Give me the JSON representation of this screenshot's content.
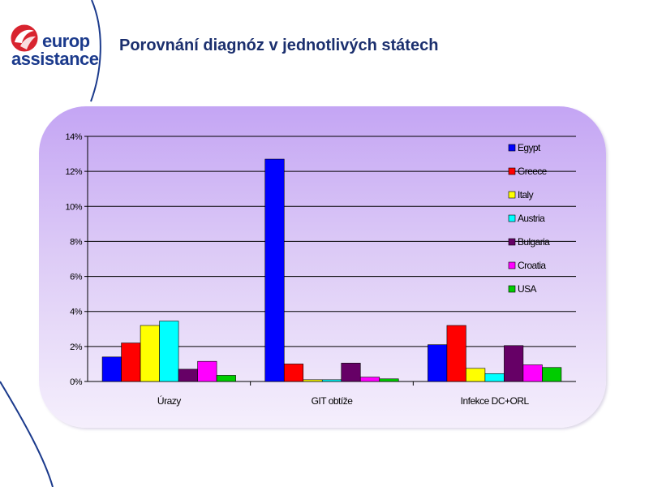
{
  "page": {
    "title": "Porovnání diagnóz v jednotlivých státech"
  },
  "logo": {
    "line1": "europ",
    "line2": "assistance",
    "colors": {
      "text": "#1b3a8c",
      "mark_red": "#d8242f",
      "mark_blue": "#1b3a8c"
    }
  },
  "chart_data": {
    "type": "bar",
    "title": "",
    "xlabel": "",
    "ylabel": "",
    "categories": [
      "Úrazy",
      "GIT obtíže",
      "Infekce DC+ORL"
    ],
    "ylim": [
      0,
      14
    ],
    "yticks": [
      "0%",
      "2%",
      "4%",
      "6%",
      "8%",
      "10%",
      "12%",
      "14%"
    ],
    "grid": true,
    "legend_position": "right",
    "series": [
      {
        "name": "Egypt",
        "color": "#0000ff",
        "values": [
          1.4,
          12.7,
          2.1
        ]
      },
      {
        "name": "Greece",
        "color": "#ff0000",
        "values": [
          2.2,
          1.0,
          3.2
        ]
      },
      {
        "name": "Italy",
        "color": "#ffff00",
        "values": [
          3.2,
          0.1,
          0.75
        ]
      },
      {
        "name": "Austria",
        "color": "#00ffff",
        "values": [
          3.45,
          0.1,
          0.45
        ]
      },
      {
        "name": "Bulgaria",
        "color": "#660066",
        "values": [
          0.7,
          1.05,
          2.05
        ]
      },
      {
        "name": "Croatia",
        "color": "#ff00ff",
        "values": [
          1.15,
          0.25,
          0.95
        ]
      },
      {
        "name": "USA",
        "color": "#00cc00",
        "values": [
          0.35,
          0.15,
          0.8
        ]
      }
    ]
  }
}
